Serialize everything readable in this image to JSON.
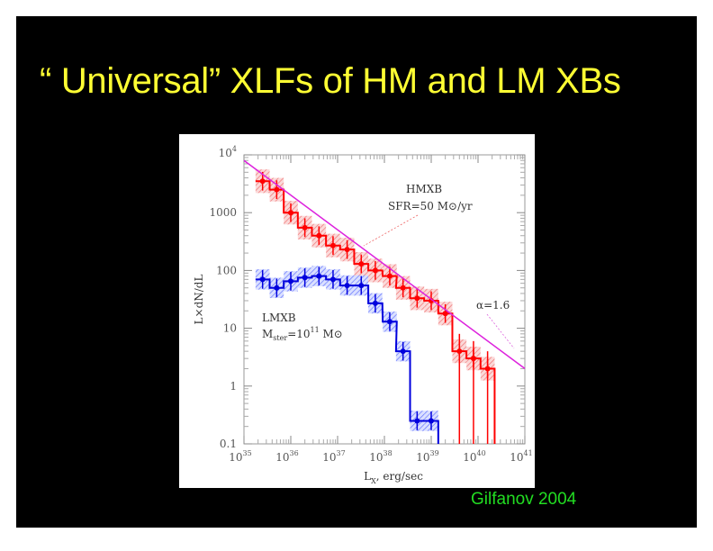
{
  "slide": {
    "title": "“ Universal” XLFs of HM and LM XBs",
    "credit": "Gilfanov 2004",
    "colors": {
      "background": "#000000",
      "title": "#ffff33",
      "credit": "#22dd22"
    }
  },
  "chart_data": {
    "type": "line",
    "xscale": "log",
    "yscale": "log",
    "xlim": [
      1e+35,
      1e+41
    ],
    "ylim": [
      0.1,
      10000
    ],
    "xlabel": "L",
    "xlabel_sub": "X",
    "xlabel_unit": ", erg/sec",
    "ylabel": "L×dN/dL",
    "x_ticks": [
      {
        "value": 1e+35,
        "base": "10",
        "exp": "35"
      },
      {
        "value": 1e+36,
        "base": "10",
        "exp": "36"
      },
      {
        "value": 1e+37,
        "base": "10",
        "exp": "37"
      },
      {
        "value": 1e+38,
        "base": "10",
        "exp": "38"
      },
      {
        "value": 1e+39,
        "base": "10",
        "exp": "39"
      },
      {
        "value": 1e+40,
        "base": "10",
        "exp": "40"
      },
      {
        "value": 1e+41,
        "base": "10",
        "exp": "41"
      }
    ],
    "y_ticks": [
      {
        "value": 0.1,
        "label": "0.1"
      },
      {
        "value": 1,
        "label": "1"
      },
      {
        "value": 10,
        "label": "10"
      },
      {
        "value": 100,
        "label": "100"
      },
      {
        "value": 1000,
        "label": "1000"
      },
      {
        "value": 10000,
        "base": "10",
        "exp": "4"
      }
    ],
    "series": [
      {
        "name": "HMXB",
        "color": "#ff0000",
        "band_color": "#ee6666",
        "annotation": [
          "HMXB",
          "SFR=50 M⊙/yr"
        ],
        "x": [
          2.5e+35,
          5e+35,
          1e+36,
          2e+36,
          4e+36,
          8e+36,
          1.6e+37,
          3.2e+37,
          6.4e+37,
          1.3e+38,
          2.5e+38,
          5e+38,
          1e+39,
          2e+39,
          4e+39,
          8e+39,
          1.6e+40
        ],
        "y": [
          3500,
          2500,
          1000,
          550,
          400,
          270,
          230,
          130,
          100,
          80,
          50,
          33,
          30,
          18,
          4,
          3,
          2
        ]
      },
      {
        "name": "LMXB",
        "color": "#0000dd",
        "band_color": "#5566ff",
        "annotation": [
          "LMXB",
          "M",
          "ster",
          "=10",
          "11",
          " M⊙"
        ],
        "x": [
          2.5e+35,
          5e+35,
          1e+36,
          2e+36,
          4e+36,
          8e+36,
          1.6e+37,
          3.2e+37,
          6.4e+37,
          1.3e+38,
          2.5e+38,
          5e+38,
          1e+39
        ],
        "y": [
          70,
          50,
          65,
          75,
          80,
          70,
          55,
          55,
          27,
          13,
          4,
          0.25,
          0.25
        ]
      },
      {
        "name": "α=1.6",
        "color": "#dd22dd",
        "type": "powerlaw",
        "slope": -0.6,
        "anchor": {
          "x": 1e+35,
          "y": 8000
        }
      }
    ],
    "grid": false,
    "legend": "none"
  }
}
